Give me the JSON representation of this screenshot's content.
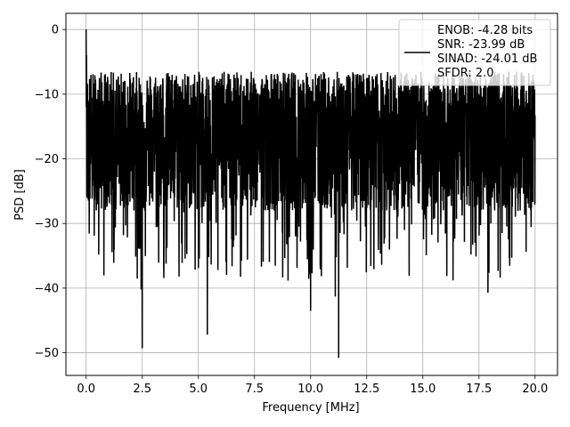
{
  "chart_data": {
    "type": "line",
    "title": "",
    "xlabel": "Frequency [MHz]",
    "ylabel": "PSD [dB]",
    "xlim": [
      -0.9,
      21.0
    ],
    "ylim": [
      -53.5,
      2.5
    ],
    "xticks": [
      0.0,
      2.5,
      5.0,
      7.5,
      10.0,
      12.5,
      15.0,
      17.5,
      20.0
    ],
    "xtick_labels": [
      "0.0",
      "2.5",
      "5.0",
      "7.5",
      "10.0",
      "12.5",
      "15.0",
      "17.5",
      "20.0"
    ],
    "yticks": [
      0,
      -10,
      -20,
      -30,
      -40,
      -50
    ],
    "ytick_labels": [
      "0",
      "−10",
      "−20",
      "−30",
      "−40",
      "−50"
    ],
    "grid": true,
    "legend_position": "upper right",
    "legend_entries": [
      "ENOB: -4.28 bits",
      "SNR: -23.99 dB",
      "SINAD: -24.01 dB",
      "SFDR: 2.0"
    ],
    "series": [
      {
        "color": "#000000",
        "x_range": [
          0.0,
          20.0
        ],
        "peak": {
          "x": 0.0,
          "y": 0.0
        },
        "noise_floor_mean_db": -17,
        "noise_upper_db": -6,
        "noise_lower_typical_db": -30,
        "notable_dips": [
          {
            "x": 2.5,
            "y": -49.3
          },
          {
            "x": 5.4,
            "y": -47.2
          },
          {
            "x": 11.25,
            "y": -50.8
          },
          {
            "x": 10.0,
            "y": -43.5
          },
          {
            "x": 11.1,
            "y": -41.3
          },
          {
            "x": 17.9,
            "y": -40.7
          },
          {
            "x": 2.45,
            "y": -40.2
          }
        ]
      }
    ]
  }
}
